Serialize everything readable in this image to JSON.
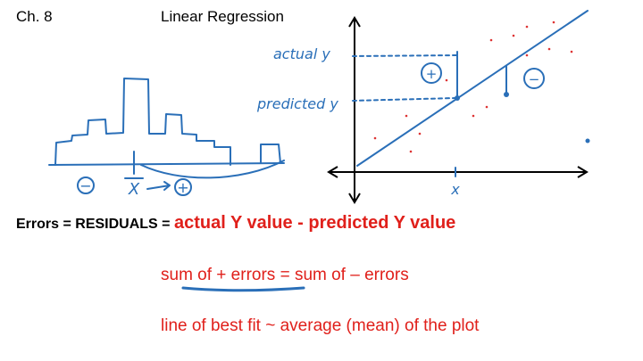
{
  "header": {
    "chapter": "Ch. 8",
    "title": "Linear Regression"
  },
  "annotations": {
    "actual_y": "actual y",
    "predicted_y": "predicted y",
    "x_axis": "x",
    "x_bar": "X",
    "plus": "+",
    "minus": "−",
    "positive_error": "+",
    "negative_error": "−"
  },
  "body": {
    "errors_label": "Errors = RESIDUALS = ",
    "errors_definition": "actual Y value - predicted Y value",
    "sum_rule": "sum of + errors = sum of – errors",
    "best_fit": "line of best fit ~ average (mean) of the plot"
  }
}
